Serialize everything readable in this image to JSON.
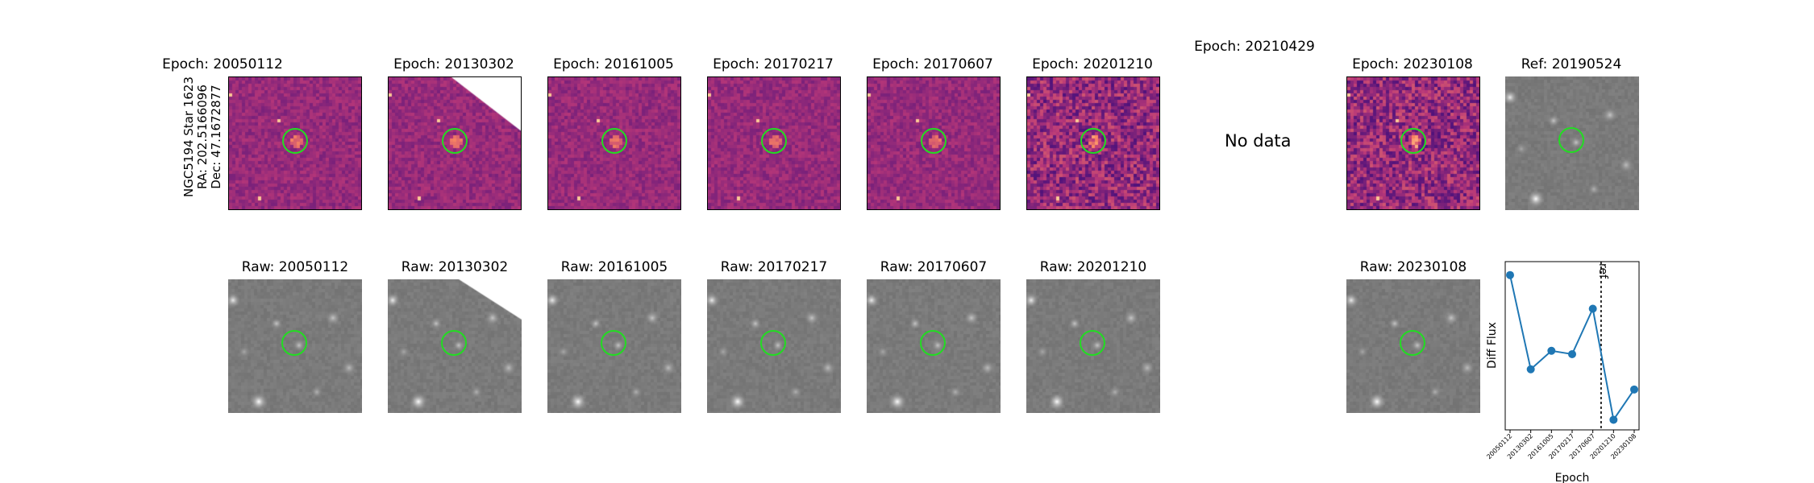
{
  "row_label": [
    "NGC5194 Star 1623",
    "RA: 202.5166096",
    "Dec: 47.1672877"
  ],
  "diff_row": [
    {
      "title": "Epoch: 20050112",
      "has_data": true
    },
    {
      "title": "Epoch: 20130302",
      "has_data": true
    },
    {
      "title": "Epoch: 20161005",
      "has_data": true
    },
    {
      "title": "Epoch: 20170217",
      "has_data": true
    },
    {
      "title": "Epoch: 20170607",
      "has_data": true
    },
    {
      "title": "Epoch: 20201210",
      "has_data": true
    },
    {
      "title": "Epoch: 20210429",
      "has_data": false,
      "message": "No data"
    },
    {
      "title": "Epoch: 20230108",
      "has_data": true
    }
  ],
  "ref_panel": {
    "title": "Ref: 20190524"
  },
  "raw_row": [
    {
      "title": "Raw: 20050112"
    },
    {
      "title": "Raw: 20130302"
    },
    {
      "title": "Raw: 20161005"
    },
    {
      "title": "Raw: 20170217"
    },
    {
      "title": "Raw: 20170607"
    },
    {
      "title": "Raw: 20201210"
    },
    {
      "title": ""
    },
    {
      "title": "Raw: 20230108"
    }
  ],
  "colors": {
    "diff_cmap": "magma",
    "marker": "#22dd22",
    "series": "#1f77b4"
  },
  "chart_data": {
    "type": "line",
    "xlabel": "Epoch",
    "ylabel": "Diff Flux",
    "categories": [
      "20050112",
      "20130302",
      "20161005",
      "20170217",
      "20170607",
      "20201210",
      "20230108"
    ],
    "values": [
      0.92,
      0.36,
      0.47,
      0.45,
      0.72,
      0.06,
      0.24
    ],
    "ylim": [
      0,
      1
    ],
    "ref_line": {
      "label": "ref",
      "after_category": "20170607"
    },
    "y_ticks_shown": false
  }
}
